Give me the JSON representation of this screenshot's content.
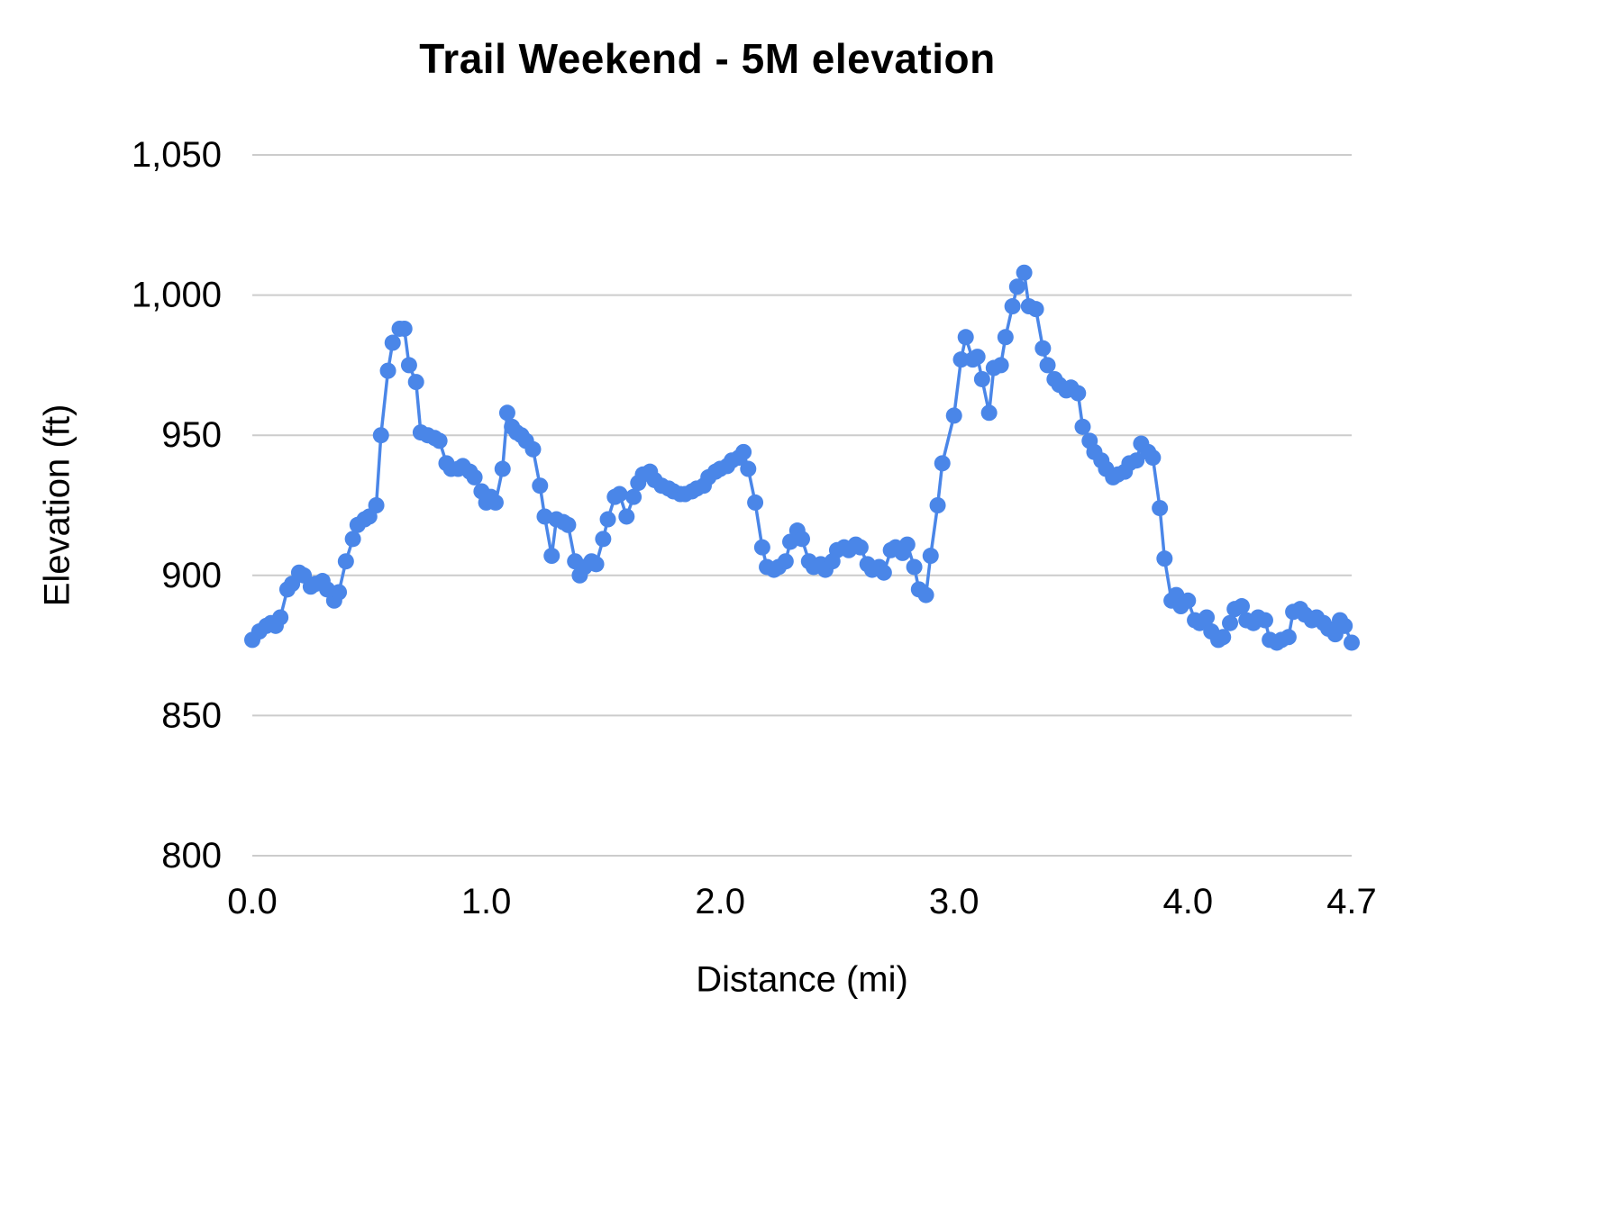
{
  "style": {
    "line_color": "#4a86e8",
    "grid_color": "#cccccc",
    "text_color": "#000000",
    "background_color": "#ffffff"
  },
  "chart_data": {
    "type": "line",
    "title": "Trail Weekend - 5M elevation",
    "xlabel": "Distance (mi)",
    "ylabel": "Elevation (ft)",
    "xlim": [
      0,
      4.7
    ],
    "ylim": [
      800,
      1050
    ],
    "grid": "horizontal",
    "legend": "none",
    "markers": "circle",
    "x_ticks": [
      {
        "value": 0.0,
        "label": "0.0"
      },
      {
        "value": 1.0,
        "label": "1.0"
      },
      {
        "value": 2.0,
        "label": "2.0"
      },
      {
        "value": 3.0,
        "label": "3.0"
      },
      {
        "value": 4.0,
        "label": "4.0"
      },
      {
        "value": 4.7,
        "label": "4.7"
      }
    ],
    "y_ticks": [
      {
        "value": 800,
        "label": "800"
      },
      {
        "value": 850,
        "label": "850"
      },
      {
        "value": 900,
        "label": "900"
      },
      {
        "value": 950,
        "label": "950"
      },
      {
        "value": 1000,
        "label": "1,000"
      },
      {
        "value": 1050,
        "label": "1,050"
      }
    ],
    "x": [
      0.0,
      0.03,
      0.06,
      0.08,
      0.1,
      0.12,
      0.15,
      0.17,
      0.2,
      0.22,
      0.25,
      0.27,
      0.3,
      0.32,
      0.35,
      0.37,
      0.4,
      0.43,
      0.45,
      0.48,
      0.5,
      0.53,
      0.55,
      0.58,
      0.6,
      0.63,
      0.65,
      0.67,
      0.7,
      0.72,
      0.75,
      0.78,
      0.8,
      0.83,
      0.85,
      0.88,
      0.9,
      0.93,
      0.95,
      0.98,
      1.0,
      1.02,
      1.04,
      1.07,
      1.09,
      1.11,
      1.13,
      1.15,
      1.17,
      1.2,
      1.23,
      1.25,
      1.28,
      1.3,
      1.33,
      1.35,
      1.38,
      1.4,
      1.42,
      1.45,
      1.47,
      1.5,
      1.52,
      1.55,
      1.57,
      1.6,
      1.63,
      1.65,
      1.67,
      1.7,
      1.72,
      1.75,
      1.78,
      1.8,
      1.83,
      1.85,
      1.88,
      1.9,
      1.93,
      1.95,
      1.98,
      2.0,
      2.03,
      2.05,
      2.08,
      2.1,
      2.12,
      2.15,
      2.18,
      2.2,
      2.23,
      2.25,
      2.28,
      2.3,
      2.33,
      2.35,
      2.38,
      2.4,
      2.43,
      2.45,
      2.48,
      2.5,
      2.53,
      2.55,
      2.58,
      2.6,
      2.63,
      2.65,
      2.68,
      2.7,
      2.73,
      2.75,
      2.78,
      2.8,
      2.83,
      2.85,
      2.88,
      2.9,
      2.93,
      2.95,
      3.0,
      3.03,
      3.05,
      3.08,
      3.1,
      3.12,
      3.15,
      3.17,
      3.2,
      3.22,
      3.25,
      3.27,
      3.3,
      3.32,
      3.35,
      3.38,
      3.4,
      3.43,
      3.45,
      3.48,
      3.5,
      3.53,
      3.55,
      3.58,
      3.6,
      3.63,
      3.65,
      3.68,
      3.7,
      3.73,
      3.75,
      3.78,
      3.8,
      3.83,
      3.85,
      3.88,
      3.9,
      3.93,
      3.95,
      3.97,
      4.0,
      4.03,
      4.05,
      4.08,
      4.1,
      4.13,
      4.15,
      4.18,
      4.2,
      4.23,
      4.25,
      4.28,
      4.3,
      4.33,
      4.35,
      4.38,
      4.4,
      4.43,
      4.45,
      4.48,
      4.5,
      4.53,
      4.55,
      4.58,
      4.6,
      4.63,
      4.65,
      4.67,
      4.7
    ],
    "y": [
      877,
      880,
      882,
      883,
      882,
      885,
      895,
      897,
      901,
      900,
      896,
      897,
      898,
      895,
      891,
      894,
      905,
      913,
      918,
      920,
      921,
      925,
      950,
      973,
      983,
      988,
      988,
      975,
      969,
      951,
      950,
      949,
      948,
      940,
      938,
      938,
      939,
      937,
      935,
      930,
      926,
      928,
      926,
      938,
      958,
      953,
      951,
      950,
      948,
      945,
      932,
      921,
      907,
      920,
      919,
      918,
      905,
      900,
      903,
      905,
      904,
      913,
      920,
      928,
      929,
      921,
      928,
      933,
      936,
      937,
      934,
      932,
      931,
      930,
      929,
      929,
      930,
      931,
      932,
      935,
      937,
      938,
      939,
      941,
      942,
      944,
      938,
      926,
      910,
      903,
      902,
      903,
      905,
      912,
      916,
      913,
      905,
      903,
      904,
      902,
      905,
      909,
      910,
      909,
      911,
      910,
      904,
      902,
      903,
      901,
      909,
      910,
      908,
      911,
      903,
      895,
      893,
      907,
      925,
      940,
      957,
      977,
      985,
      977,
      978,
      970,
      958,
      974,
      975,
      985,
      996,
      1003,
      1008,
      996,
      995,
      981,
      975,
      970,
      968,
      966,
      967,
      965,
      953,
      948,
      944,
      941,
      938,
      935,
      936,
      937,
      940,
      941,
      947,
      944,
      942,
      924,
      906,
      891,
      893,
      889,
      891,
      884,
      883,
      885,
      880,
      877,
      878,
      883,
      888,
      889,
      884,
      883,
      885,
      884,
      877,
      876,
      877,
      878,
      887,
      888,
      886,
      884,
      885,
      883,
      881,
      879,
      884,
      882,
      876
    ]
  }
}
